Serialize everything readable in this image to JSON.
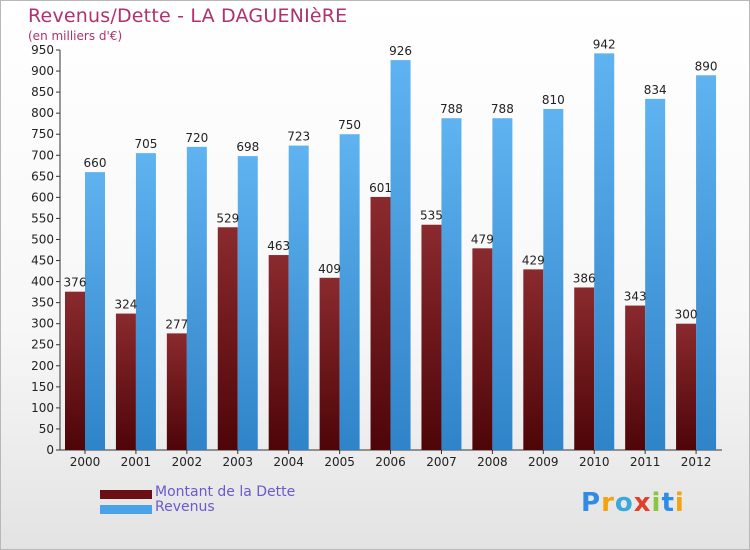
{
  "title": "Revenus/Dette - LA DAGUENIèRE",
  "subtitle": "(en milliers d'€)",
  "brand": {
    "text": "Proxiti",
    "letters": [
      {
        "ch": "P",
        "color": "#2e8be6"
      },
      {
        "ch": "r",
        "color": "#f2a30f"
      },
      {
        "ch": "o",
        "color": "#3aa8d8"
      },
      {
        "ch": "x",
        "color": "#e0402a"
      },
      {
        "ch": "i",
        "color": "#8cc63f"
      },
      {
        "ch": "t",
        "color": "#2e8be6"
      },
      {
        "ch": "i",
        "color": "#f2a30f"
      }
    ]
  },
  "legend": [
    {
      "label": "Montant de la Dette",
      "color": "#6b0f14"
    },
    {
      "label": "Revenus",
      "color": "#4aa3e8"
    }
  ],
  "chart_data": {
    "type": "bar",
    "title": "Revenus/Dette - LA DAGUENIèRE",
    "subtitle": "(en milliers d'€)",
    "categories": [
      "2000",
      "2001",
      "2002",
      "2003",
      "2004",
      "2005",
      "2006",
      "2007",
      "2008",
      "2009",
      "2010",
      "2011",
      "2012"
    ],
    "series": [
      {
        "name": "Montant de la Dette",
        "color": "#7a1e22",
        "values": [
          376,
          324,
          277,
          529,
          463,
          409,
          601,
          535,
          479,
          429,
          386,
          343,
          300
        ]
      },
      {
        "name": "Revenus",
        "color": "#4aa3e8",
        "values": [
          660,
          705,
          720,
          698,
          723,
          750,
          926,
          788,
          788,
          810,
          942,
          834,
          890
        ]
      }
    ],
    "ylim": [
      0,
      950
    ],
    "ytick_step": 50,
    "grid": false,
    "legend_position": "bottom-left"
  }
}
